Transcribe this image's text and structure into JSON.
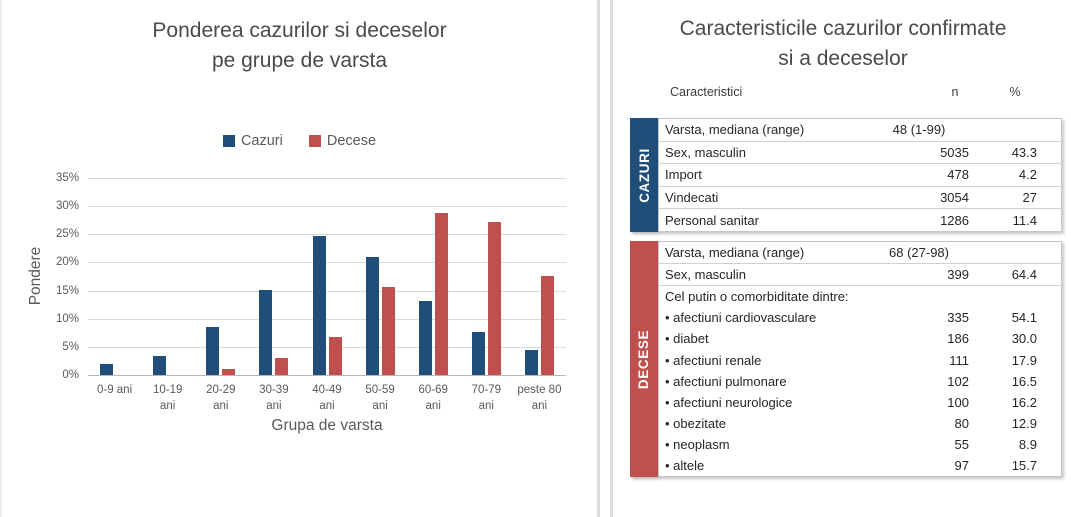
{
  "left_panel": {
    "title_line1": "Ponderea cazurilor si deceselor",
    "title_line2": "pe grupe de varsta",
    "y_axis_title": "Pondere",
    "x_axis_title": "Grupa de varsta"
  },
  "chart_data": {
    "type": "bar",
    "title": "Ponderea cazurilor si deceselor pe grupe de varsta",
    "categories": [
      "0-9 ani",
      "10-19 ani",
      "20-29 ani",
      "30-39 ani",
      "40-49 ani",
      "50-59 ani",
      "60-69 ani",
      "70-79 ani",
      "peste 80 ani"
    ],
    "series": [
      {
        "name": "Cazuri",
        "color": "#1F4E79",
        "values": [
          2.0,
          3.4,
          8.5,
          15.1,
          24.7,
          21.0,
          13.2,
          7.7,
          4.5
        ]
      },
      {
        "name": "Decese",
        "color": "#C0504D",
        "values": [
          0.0,
          0.0,
          1.0,
          3.1,
          6.7,
          15.7,
          28.8,
          27.2,
          17.6
        ]
      }
    ],
    "xlabel": "Grupa de varsta",
    "ylabel": "Pondere",
    "ylim": [
      0,
      35
    ],
    "ytick_step": 5,
    "ytick_suffix": "%",
    "grid": true,
    "legend_position": "top-center"
  },
  "right_panel": {
    "title_line1": "Caracteristicile cazurilor confirmate",
    "title_line2": "si a deceselor",
    "columns": {
      "label": "Caracteristici",
      "n": "n",
      "pct": "%"
    },
    "sections": [
      {
        "id": "cazuri",
        "label": "CAZURI",
        "color": "#1F4E79",
        "rows": [
          {
            "label": "Varsta, mediana (range)",
            "n": "48 (1-99)",
            "pct": "",
            "range": true,
            "sep": true
          },
          {
            "label": "Sex, masculin",
            "n": "5035",
            "pct": "43.3",
            "sep": true
          },
          {
            "label": "Import",
            "n": "478",
            "pct": "4.2",
            "sep": true
          },
          {
            "label": "Vindecati",
            "n": "3054",
            "pct": "27",
            "sep": true
          },
          {
            "label": "Personal sanitar",
            "n": "1286",
            "pct": "11.4",
            "sep": false
          }
        ]
      },
      {
        "id": "decese",
        "label": "DECESE",
        "color": "#C0504D",
        "rows": [
          {
            "label": "Varsta, mediana (range)",
            "n": "68 (27-98)",
            "pct": "",
            "range": true,
            "sep": true
          },
          {
            "label": "Sex, masculin",
            "n": "399",
            "pct": "64.4",
            "sep": true
          },
          {
            "label": "Cel putin o comorbiditate dintre:",
            "n": "",
            "pct": "",
            "sep": false
          },
          {
            "label": "• afectiuni cardiovasculare",
            "n": "335",
            "pct": "54.1",
            "sep": false
          },
          {
            "label": "• diabet",
            "n": "186",
            "pct": "30.0",
            "sep": false
          },
          {
            "label": "• afectiuni renale",
            "n": "111",
            "pct": "17.9",
            "sep": false
          },
          {
            "label": "• afectiuni pulmonare",
            "n": "102",
            "pct": "16.5",
            "sep": false
          },
          {
            "label": "• afectiuni neurologice",
            "n": "100",
            "pct": "16.2",
            "sep": false
          },
          {
            "label": "• obezitate",
            "n": "80",
            "pct": "12.9",
            "sep": false
          },
          {
            "label": "• neoplasm",
            "n": "55",
            "pct": "8.9",
            "sep": false
          },
          {
            "label": "• altele",
            "n": "97",
            "pct": "15.7",
            "sep": false
          }
        ]
      }
    ]
  }
}
